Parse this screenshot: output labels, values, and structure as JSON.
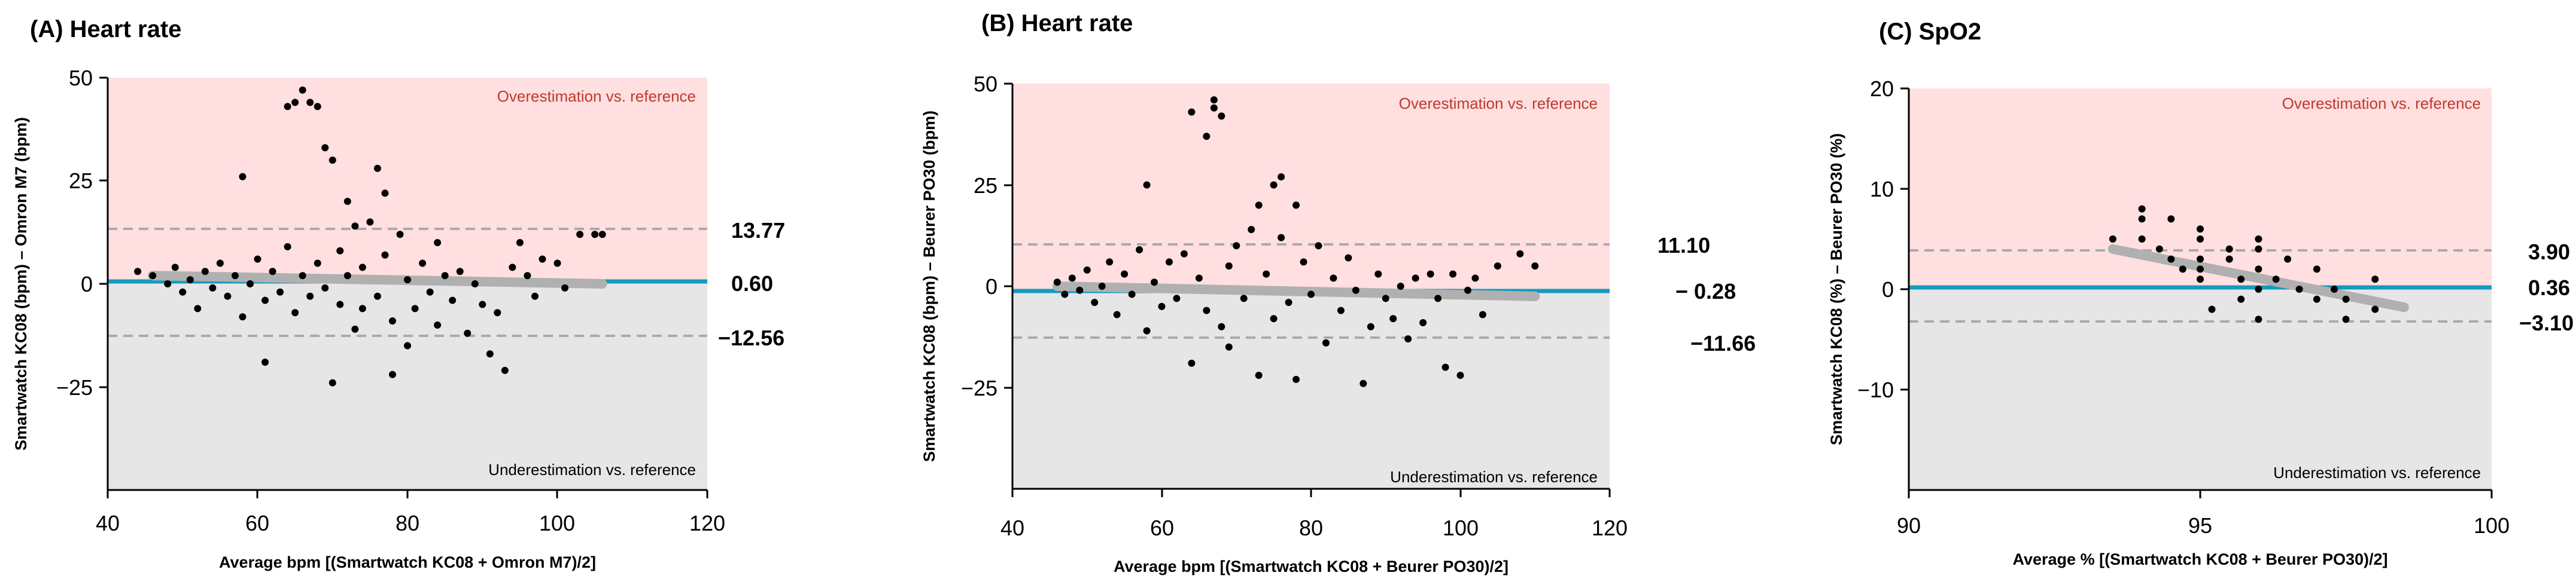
{
  "chart_data": [
    {
      "type": "scatter",
      "panel": "A",
      "title": "(A) Heart rate",
      "xlabel": "Average bpm [(Smartwatch KC08 +  Omron M7)/2]",
      "ylabel": "Smartwatch KC08 (bpm) – Omron M7 (bpm)",
      "xlim": [
        40,
        120
      ],
      "ylim": [
        -50,
        50
      ],
      "xticks": [
        40,
        60,
        80,
        100,
        120
      ],
      "yticks": [
        50,
        25,
        0,
        -25
      ],
      "xtick_labels": [
        "40",
        "60",
        "80",
        "100",
        "120"
      ],
      "ytick_labels": [
        "50",
        "25",
        "0",
        "−25"
      ],
      "overestimation_label": "Overestimation vs. reference",
      "underestimation_label": "Underestimation vs. reference",
      "bias": 0.6,
      "upper_loa": 13.77,
      "lower_loa": -12.56,
      "bias_label": "0.60",
      "upper_loa_label": "13.77",
      "lower_loa_label": "−12.56",
      "regression_line": {
        "x": [
          46,
          106
        ],
        "y": [
          2.0,
          0.0
        ]
      },
      "points": [
        [
          44,
          3
        ],
        [
          46,
          2
        ],
        [
          48,
          0
        ],
        [
          49,
          4
        ],
        [
          50,
          -2
        ],
        [
          51,
          1
        ],
        [
          52,
          -6
        ],
        [
          53,
          3
        ],
        [
          54,
          -1
        ],
        [
          55,
          5
        ],
        [
          56,
          -3
        ],
        [
          57,
          2
        ],
        [
          58,
          -8
        ],
        [
          58,
          26
        ],
        [
          59,
          0
        ],
        [
          60,
          6
        ],
        [
          61,
          -4
        ],
        [
          61,
          -19
        ],
        [
          62,
          3
        ],
        [
          63,
          -2
        ],
        [
          64,
          9
        ],
        [
          64,
          43
        ],
        [
          65,
          -7
        ],
        [
          65,
          44
        ],
        [
          66,
          2
        ],
        [
          66,
          47
        ],
        [
          67,
          -3
        ],
        [
          67,
          44
        ],
        [
          68,
          5
        ],
        [
          68,
          43
        ],
        [
          69,
          -1
        ],
        [
          69,
          33
        ],
        [
          70,
          -24
        ],
        [
          70,
          30
        ],
        [
          71,
          8
        ],
        [
          71,
          -5
        ],
        [
          72,
          20
        ],
        [
          72,
          2
        ],
        [
          73,
          -11
        ],
        [
          73,
          14
        ],
        [
          74,
          4
        ],
        [
          74,
          -6
        ],
        [
          75,
          15
        ],
        [
          76,
          28
        ],
        [
          76,
          -3
        ],
        [
          77,
          22
        ],
        [
          77,
          7
        ],
        [
          78,
          -22
        ],
        [
          78,
          -9
        ],
        [
          79,
          12
        ],
        [
          80,
          1
        ],
        [
          80,
          -15
        ],
        [
          81,
          -6
        ],
        [
          82,
          5
        ],
        [
          83,
          -2
        ],
        [
          84,
          10
        ],
        [
          84,
          -10
        ],
        [
          85,
          2
        ],
        [
          86,
          -4
        ],
        [
          87,
          3
        ],
        [
          88,
          -12
        ],
        [
          89,
          0
        ],
        [
          90,
          -5
        ],
        [
          91,
          -17
        ],
        [
          92,
          -7
        ],
        [
          93,
          -21
        ],
        [
          94,
          4
        ],
        [
          95,
          10
        ],
        [
          96,
          2
        ],
        [
          97,
          -3
        ],
        [
          98,
          6
        ],
        [
          100,
          5
        ],
        [
          101,
          -1
        ],
        [
          103,
          12
        ],
        [
          105,
          12
        ],
        [
          106,
          12
        ]
      ]
    },
    {
      "type": "scatter",
      "panel": "B",
      "title": "(B) Heart rate",
      "xlabel": "Average bpm [(Smartwatch KC08 +  Beurer PO30)/2]",
      "ylabel": "Smartwatch KC08 (bpm) – Beurer PO30 (bpm)",
      "xlim": [
        40,
        120
      ],
      "ylim": [
        -50,
        50
      ],
      "xticks": [
        40,
        60,
        80,
        100,
        120
      ],
      "yticks": [
        50,
        25,
        0,
        -25
      ],
      "xtick_labels": [
        "40",
        "60",
        "80",
        "100",
        "120"
      ],
      "ytick_labels": [
        "50",
        "25",
        "0",
        "−25"
      ],
      "overestimation_label": "Overestimation vs. reference",
      "underestimation_label": "Underestimation vs. reference",
      "bias": -0.28,
      "upper_loa": 11.1,
      "lower_loa": -11.66,
      "bias_label": "− 0.28",
      "upper_loa_label": "11.10",
      "lower_loa_label": "−11.66",
      "regression_line": {
        "x": [
          46,
          110
        ],
        "y": [
          0.0,
          -2.5
        ]
      },
      "points": [
        [
          46,
          1
        ],
        [
          47,
          -2
        ],
        [
          48,
          2
        ],
        [
          49,
          -1
        ],
        [
          50,
          4
        ],
        [
          51,
          -4
        ],
        [
          52,
          0
        ],
        [
          53,
          6
        ],
        [
          54,
          -7
        ],
        [
          55,
          3
        ],
        [
          56,
          -2
        ],
        [
          57,
          9
        ],
        [
          58,
          -11
        ],
        [
          58,
          25
        ],
        [
          59,
          1
        ],
        [
          60,
          -5
        ],
        [
          61,
          6
        ],
        [
          62,
          -3
        ],
        [
          63,
          8
        ],
        [
          64,
          -19
        ],
        [
          64,
          43
        ],
        [
          65,
          2
        ],
        [
          66,
          -6
        ],
        [
          66,
          37
        ],
        [
          67,
          46
        ],
        [
          67,
          44
        ],
        [
          68,
          42
        ],
        [
          68,
          -10
        ],
        [
          69,
          5
        ],
        [
          69,
          -15
        ],
        [
          70,
          10
        ],
        [
          71,
          -3
        ],
        [
          72,
          14
        ],
        [
          73,
          -22
        ],
        [
          73,
          20
        ],
        [
          74,
          3
        ],
        [
          75,
          25
        ],
        [
          75,
          -8
        ],
        [
          76,
          27
        ],
        [
          76,
          12
        ],
        [
          77,
          -4
        ],
        [
          78,
          20
        ],
        [
          78,
          -23
        ],
        [
          79,
          6
        ],
        [
          80,
          -2
        ],
        [
          81,
          10
        ],
        [
          82,
          -14
        ],
        [
          83,
          2
        ],
        [
          84,
          -6
        ],
        [
          85,
          7
        ],
        [
          86,
          -1
        ],
        [
          87,
          -24
        ],
        [
          88,
          -10
        ],
        [
          89,
          3
        ],
        [
          90,
          -3
        ],
        [
          91,
          -8
        ],
        [
          92,
          0
        ],
        [
          93,
          -13
        ],
        [
          94,
          2
        ],
        [
          95,
          -9
        ],
        [
          96,
          3
        ],
        [
          97,
          -3
        ],
        [
          98,
          -20
        ],
        [
          99,
          3
        ],
        [
          100,
          -22
        ],
        [
          101,
          -1
        ],
        [
          102,
          2
        ],
        [
          103,
          -7
        ],
        [
          105,
          5
        ],
        [
          108,
          8
        ],
        [
          110,
          5
        ]
      ]
    },
    {
      "type": "scatter",
      "panel": "C",
      "title": "(C) SpO2",
      "xlabel": "Average % [(Smartwatch KC08 +  Beurer PO30)/2]",
      "ylabel": "Smartwatch KC08 (%) –  Beurer PO30 (%)",
      "xlim": [
        90,
        100
      ],
      "ylim": [
        -20,
        20
      ],
      "xticks": [
        90,
        95,
        100
      ],
      "yticks": [
        20,
        10,
        0,
        -10
      ],
      "xtick_labels": [
        "90",
        "95",
        "100"
      ],
      "ytick_labels": [
        "20",
        "10",
        "0",
        "−10"
      ],
      "overestimation_label": "Overestimation vs. reference",
      "underestimation_label": "Underestimation vs. reference",
      "bias": 0.36,
      "upper_loa": 3.9,
      "lower_loa": -3.1,
      "bias_label": "0.36",
      "upper_loa_label": "3.90",
      "lower_loa_label": "−3.10",
      "regression_line": {
        "x": [
          93.5,
          98.5
        ],
        "y": [
          4.0,
          -1.8
        ]
      },
      "points": [
        [
          93.5,
          5
        ],
        [
          94,
          8
        ],
        [
          94,
          7
        ],
        [
          94,
          5
        ],
        [
          94.3,
          4
        ],
        [
          94.5,
          7
        ],
        [
          94.5,
          3
        ],
        [
          94.7,
          2
        ],
        [
          95,
          6
        ],
        [
          95,
          5
        ],
        [
          95,
          3
        ],
        [
          95,
          2
        ],
        [
          95,
          1
        ],
        [
          95.2,
          -2
        ],
        [
          95.5,
          4
        ],
        [
          95.5,
          3
        ],
        [
          95.7,
          1
        ],
        [
          95.7,
          -1
        ],
        [
          96,
          5
        ],
        [
          96,
          4
        ],
        [
          96,
          2
        ],
        [
          96,
          0
        ],
        [
          96,
          -3
        ],
        [
          96.3,
          1
        ],
        [
          96.5,
          3
        ],
        [
          96.7,
          0
        ],
        [
          97,
          2
        ],
        [
          97,
          -1
        ],
        [
          97.3,
          0
        ],
        [
          97.5,
          -1
        ],
        [
          97.5,
          -3
        ],
        [
          98,
          1
        ],
        [
          98,
          -2
        ]
      ]
    }
  ]
}
